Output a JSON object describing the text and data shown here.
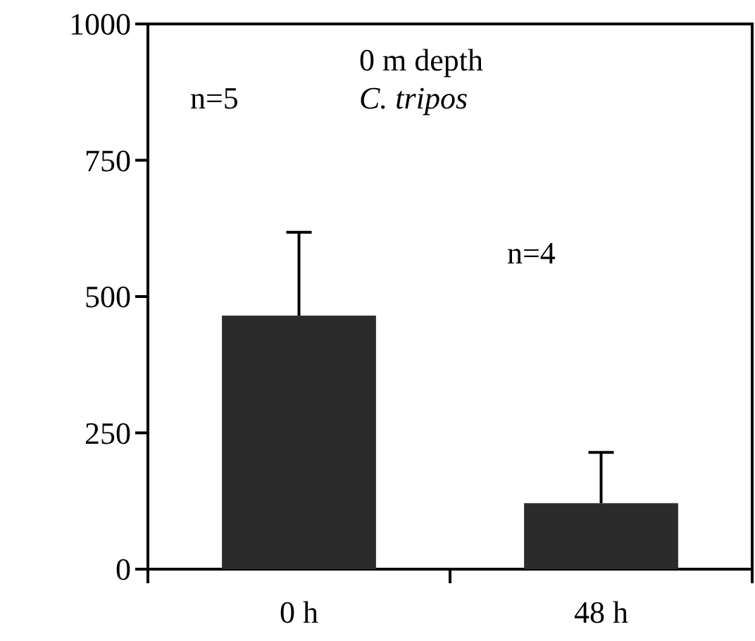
{
  "chart_data": {
    "type": "bar",
    "categories": [
      "0 h",
      "48 h"
    ],
    "values": [
      465,
      121
    ],
    "color": "#2b2b2b",
    "errors": [
      [
        465,
        618
      ],
      [
        121,
        214
      ]
    ],
    "ylim": [
      0,
      1000
    ],
    "yticks": [
      0,
      250,
      500,
      750,
      1000
    ],
    "annotations": [
      "n=5",
      "0 m depth",
      "C. tripos",
      "n=4"
    ]
  }
}
